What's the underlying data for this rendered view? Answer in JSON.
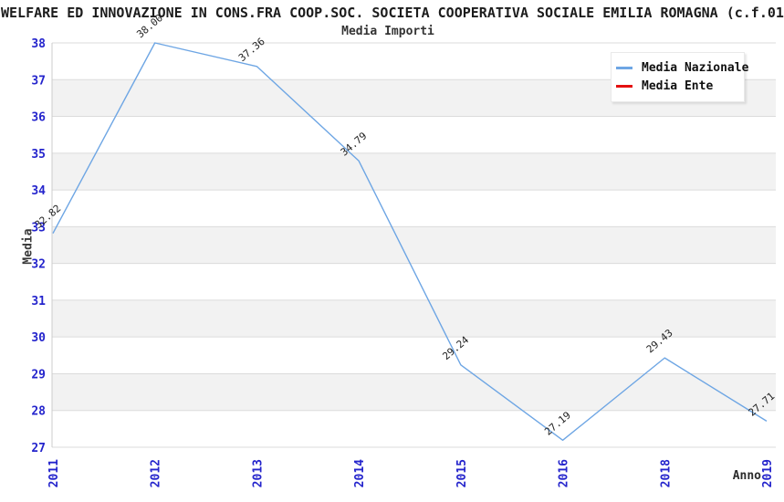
{
  "header": {
    "title": "WELFARE ED INNOVAZIONE IN CONS.FRA COOP.SOC. SOCIETA COOPERATIVA SOCIALE EMILIA ROMAGNA (c.f.01",
    "subtitle": "Media Importi"
  },
  "colors": {
    "tick_label_blue": "#2424CC",
    "point_label": "#222222",
    "band_gray": "#F2F2F2",
    "band_white": "#FFFFFF",
    "gridline": "#DBDBDB",
    "axis_border": "#CCCCCC",
    "line_nazionale": "#6EA6E4",
    "line_ente": "#E41010"
  },
  "chart_data": {
    "type": "line",
    "title": "WELFARE ED INNOVAZIONE IN CONS.FRA COOP.SOC. SOCIETA COOPERATIVA SOCIALE EMILIA ROMAGNA (c.f.01",
    "subtitle": "Media Importi",
    "xlabel": "Anno",
    "ylabel": "Media",
    "categories": [
      "2011",
      "2012",
      "2013",
      "2014",
      "2015",
      "2016",
      "2018",
      "2019"
    ],
    "y_ticks": [
      27,
      28,
      29,
      30,
      31,
      32,
      33,
      34,
      35,
      36,
      37,
      38
    ],
    "ylim": [
      27,
      38
    ],
    "grid": "horizontal",
    "banded_background": true,
    "legend_position": "top-right",
    "series": [
      {
        "name": "Media Nazionale",
        "color": "#6EA6E4",
        "values": [
          32.82,
          38.0,
          37.36,
          34.79,
          29.24,
          27.19,
          29.43,
          27.71
        ],
        "point_labels": [
          "32.82",
          "38.00",
          "37.36",
          "34.79",
          "29.24",
          "27.19",
          "29.43",
          "27.71"
        ]
      },
      {
        "name": "Media Ente",
        "color": "#E41010",
        "values": [],
        "point_labels": []
      }
    ]
  }
}
